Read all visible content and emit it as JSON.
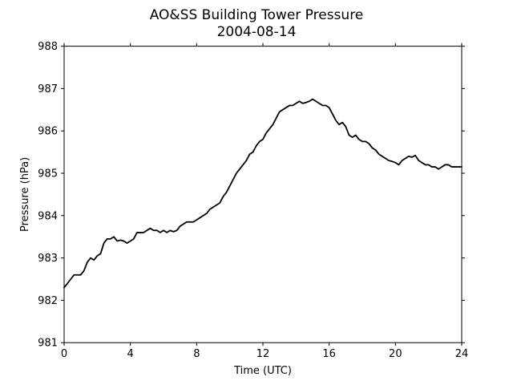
{
  "chart_data": {
    "type": "line",
    "title": "AO&SS Building Tower Pressure",
    "subtitle": "2004-08-14",
    "xlabel": "Time (UTC)",
    "ylabel": "Pressure (hPa)",
    "xlim": [
      0,
      24
    ],
    "ylim": [
      981,
      988
    ],
    "xticks": [
      0,
      4,
      8,
      12,
      16,
      20,
      24
    ],
    "yticks": [
      981,
      982,
      983,
      984,
      985,
      986,
      987,
      988
    ],
    "grid": false,
    "line_color": "#000000",
    "series": [
      {
        "x": [
          0,
          0.2,
          0.4,
          0.6,
          0.8,
          1.0,
          1.2,
          1.4,
          1.6,
          1.8,
          2.0,
          2.2,
          2.4,
          2.6,
          2.8,
          3.0,
          3.2,
          3.4,
          3.6,
          3.8,
          4.0,
          4.2,
          4.4,
          4.6,
          4.8,
          5.0,
          5.2,
          5.4,
          5.6,
          5.8,
          6.0,
          6.2,
          6.4,
          6.6,
          6.8,
          7.0,
          7.2,
          7.4,
          7.6,
          7.8,
          8.0,
          8.2,
          8.4,
          8.6,
          8.8,
          9.0,
          9.2,
          9.4,
          9.6,
          9.8,
          10.0,
          10.2,
          10.4,
          10.6,
          10.8,
          11.0,
          11.2,
          11.4,
          11.6,
          11.8,
          12.0,
          12.2,
          12.4,
          12.6,
          12.8,
          13.0,
          13.2,
          13.4,
          13.6,
          13.8,
          14.0,
          14.2,
          14.4,
          14.6,
          14.8,
          15.0,
          15.2,
          15.4,
          15.6,
          15.8,
          16.0,
          16.2,
          16.4,
          16.6,
          16.8,
          17.0,
          17.2,
          17.4,
          17.6,
          17.8,
          18.0,
          18.2,
          18.4,
          18.6,
          18.8,
          19.0,
          19.2,
          19.4,
          19.6,
          19.8,
          20.0,
          20.2,
          20.4,
          20.6,
          20.8,
          21.0,
          21.2,
          21.4,
          21.6,
          21.8,
          22.0,
          22.2,
          22.4,
          22.6,
          22.8,
          23.0,
          23.2,
          23.4,
          23.6,
          23.8,
          24.0
        ],
        "y": [
          982.3,
          982.4,
          982.5,
          982.6,
          982.6,
          982.6,
          982.7,
          982.9,
          983.0,
          982.95,
          983.05,
          983.1,
          983.35,
          983.45,
          983.45,
          983.5,
          983.4,
          983.42,
          983.4,
          983.35,
          983.4,
          983.45,
          983.6,
          983.6,
          983.6,
          983.65,
          983.7,
          983.65,
          983.65,
          983.6,
          983.65,
          983.6,
          983.65,
          983.62,
          983.65,
          983.75,
          983.8,
          983.85,
          983.85,
          983.85,
          983.9,
          983.95,
          984.0,
          984.05,
          984.15,
          984.2,
          984.25,
          984.3,
          984.45,
          984.55,
          984.7,
          984.85,
          985.0,
          985.1,
          985.2,
          985.3,
          985.45,
          985.5,
          985.65,
          985.75,
          985.8,
          985.95,
          986.05,
          986.15,
          986.3,
          986.45,
          986.5,
          986.55,
          986.6,
          986.6,
          986.65,
          986.7,
          986.65,
          986.67,
          986.7,
          986.75,
          986.7,
          986.65,
          986.6,
          986.6,
          986.55,
          986.4,
          986.25,
          986.15,
          986.2,
          986.1,
          985.9,
          985.85,
          985.9,
          985.8,
          985.75,
          985.75,
          985.7,
          985.6,
          985.55,
          985.45,
          985.4,
          985.35,
          985.3,
          985.28,
          985.25,
          985.2,
          985.3,
          985.35,
          985.4,
          985.38,
          985.42,
          985.3,
          985.25,
          985.2,
          985.2,
          985.15,
          985.15,
          985.1,
          985.15,
          985.2,
          985.2,
          985.15,
          985.15,
          985.15,
          985.15
        ]
      }
    ]
  }
}
